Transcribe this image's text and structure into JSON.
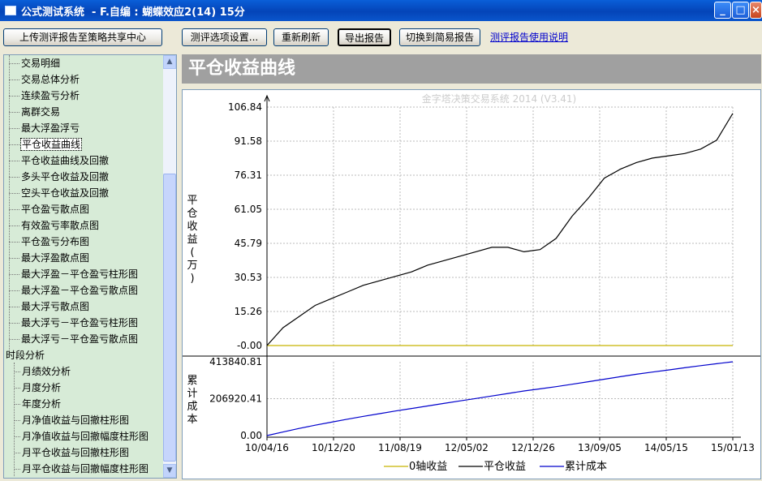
{
  "window": {
    "title": "公式测试系统  - F.自编 : 蝴蝶效应2(14) 15分",
    "min_label": "_",
    "max_label": "□",
    "close_label": "×"
  },
  "toolbar": {
    "upload_label": "上传测评报告至策略共享中心",
    "options_label": "测评选项设置...",
    "refresh_label": "重新刷新",
    "export_label": "导出报告",
    "switch_label": "切换到简易报告",
    "help_link": "测评报告使用说明"
  },
  "sidebar": {
    "items": [
      {
        "label": "交易明细",
        "level": 1
      },
      {
        "label": "交易总体分析",
        "level": 1
      },
      {
        "label": "连续盈亏分析",
        "level": 1
      },
      {
        "label": "离群交易",
        "level": 1
      },
      {
        "label": "最大浮盈浮亏",
        "level": 1
      },
      {
        "label": "平仓收益曲线",
        "level": 1,
        "selected": true
      },
      {
        "label": "平仓收益曲线及回撤",
        "level": 1
      },
      {
        "label": "多头平仓收益及回撤",
        "level": 1
      },
      {
        "label": "空头平仓收益及回撤",
        "level": 1
      },
      {
        "label": "平仓盈亏散点图",
        "level": 1
      },
      {
        "label": "有效盈亏率散点图",
        "level": 1
      },
      {
        "label": "平仓盈亏分布图",
        "level": 1
      },
      {
        "label": "最大浮盈散点图",
        "level": 1
      },
      {
        "label": "最大浮盈－平仓盈亏柱形图",
        "level": 1
      },
      {
        "label": "最大浮盈－平仓盈亏散点图",
        "level": 1
      },
      {
        "label": "最大浮亏散点图",
        "level": 1
      },
      {
        "label": "最大浮亏－平仓盈亏柱形图",
        "level": 1
      },
      {
        "label": "最大浮亏－平仓盈亏散点图",
        "level": 1
      },
      {
        "label": "时段分析",
        "level": 0
      },
      {
        "label": "月绩效分析",
        "level": 1
      },
      {
        "label": "月度分析",
        "level": 1
      },
      {
        "label": "年度分析",
        "level": 1
      },
      {
        "label": "月净值收益与回撤柱形图",
        "level": 1
      },
      {
        "label": "月净值收益与回撤幅度柱形图",
        "level": 1
      },
      {
        "label": "月平仓收益与回撤柱形图",
        "level": 1
      },
      {
        "label": "月平仓收益与回撤幅度柱形图",
        "level": 1
      }
    ],
    "scroll_up": "▲",
    "scroll_down": "▼"
  },
  "main": {
    "banner_title": "平仓收益曲线"
  },
  "chart_data": {
    "type": "line",
    "watermark": "金字塔决策交易系统 2014 (V3.41)",
    "x_ticks": [
      "10/04/16",
      "10/12/20",
      "11/08/19",
      "12/05/02",
      "12/12/26",
      "13/09/05",
      "14/05/15",
      "15/01/13"
    ],
    "upper": {
      "ylabel": "平仓收益(万)",
      "y_ticks": [
        "106.84",
        "91.58",
        "76.31",
        "61.05",
        "45.79",
        "30.53",
        "15.26",
        "-0.00"
      ],
      "ylim": [
        0,
        106.84
      ],
      "series": [
        {
          "name": "0轴收益",
          "color": "#c8b400",
          "values": [
            0,
            0,
            0,
            0,
            0,
            0,
            0,
            0,
            0,
            0,
            0,
            0,
            0,
            0,
            0,
            0,
            0,
            0,
            0,
            0,
            0,
            0,
            0,
            0,
            0,
            0,
            0,
            0,
            0,
            0
          ]
        },
        {
          "name": "平仓收益",
          "color": "#000000",
          "values": [
            0,
            8,
            13,
            18,
            21,
            24,
            27,
            29,
            31,
            33,
            36,
            38,
            40,
            42,
            44,
            44,
            42,
            43,
            48,
            58,
            66,
            75,
            79,
            82,
            84,
            85,
            86,
            88,
            92,
            104
          ]
        }
      ]
    },
    "lower": {
      "ylabel": "累计成本",
      "y_ticks": [
        "413840.81",
        "206920.41",
        "0.00"
      ],
      "ylim": [
        0,
        413840.81
      ],
      "series": [
        {
          "name": "累计成本",
          "color": "#0000cc",
          "values": [
            0,
            20000,
            40000,
            58000,
            75000,
            92000,
            108000,
            123000,
            138000,
            152000,
            166000,
            180000,
            194000,
            208000,
            222000,
            236000,
            250000,
            262000,
            274000,
            288000,
            302000,
            316000,
            330000,
            344000,
            356000,
            368000,
            380000,
            392000,
            403000,
            413840
          ]
        }
      ]
    },
    "legend": [
      "0轴收益",
      "平仓收益",
      "累计成本"
    ],
    "legend_position": "bottom-center",
    "grid": true
  }
}
